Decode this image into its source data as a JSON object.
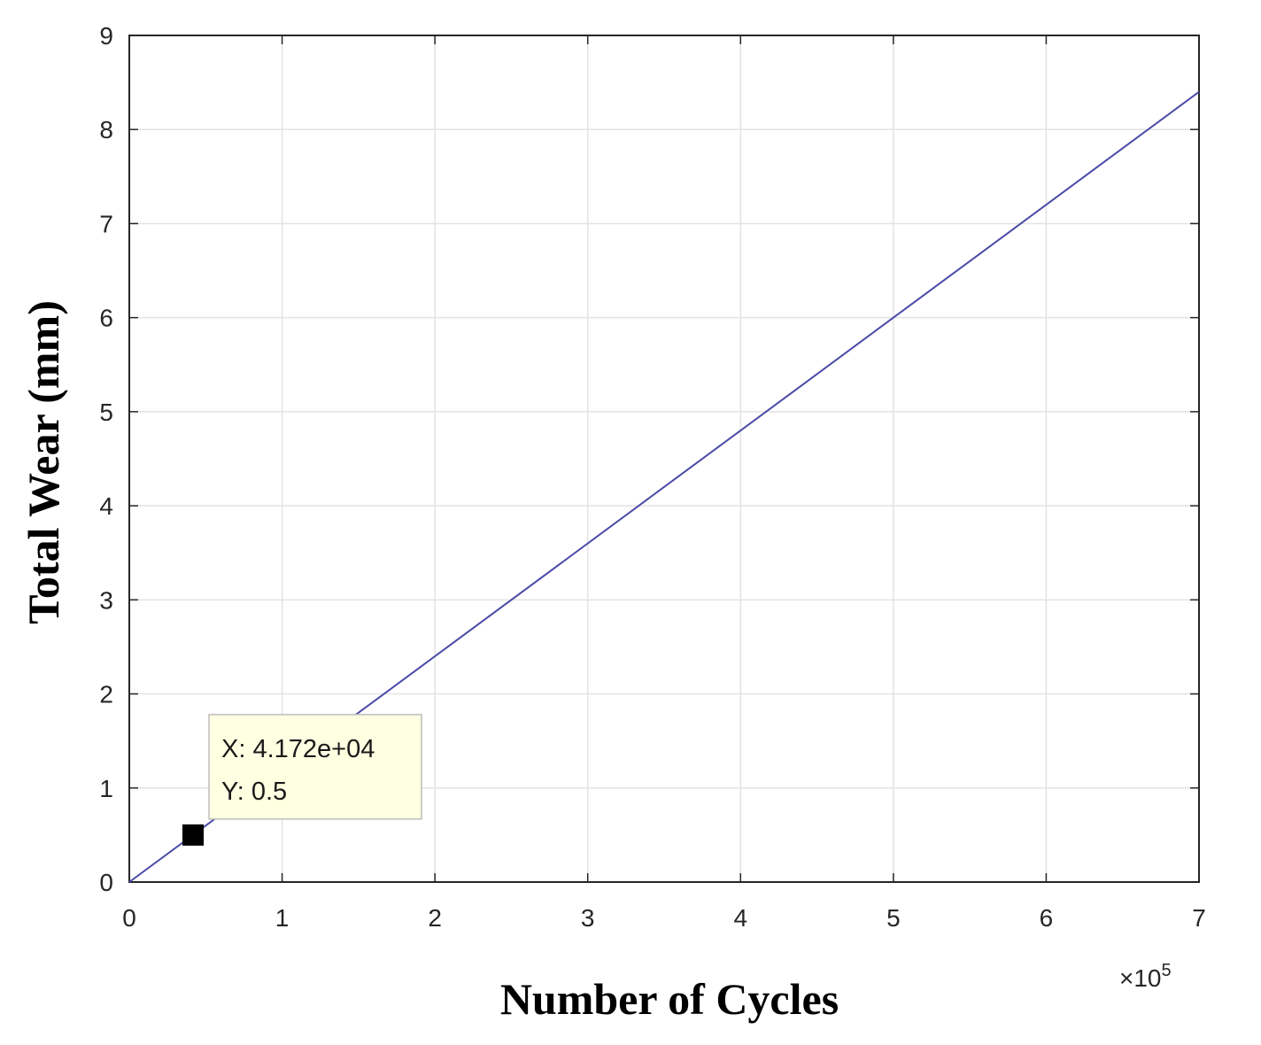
{
  "chart_data": {
    "type": "line",
    "xlabel": "Number of Cycles",
    "ylabel": "Total Wear (mm)",
    "x_exponent_label": "×10",
    "x_exponent_power": "5",
    "xlim": [
      0,
      700000
    ],
    "ylim": [
      0,
      9
    ],
    "xticks": [
      0,
      100000,
      200000,
      300000,
      400000,
      500000,
      600000,
      700000
    ],
    "xtick_labels": [
      "0",
      "1",
      "2",
      "3",
      "4",
      "5",
      "6",
      "7"
    ],
    "yticks": [
      0,
      1,
      2,
      3,
      4,
      5,
      6,
      7,
      8,
      9
    ],
    "ytick_labels": [
      "0",
      "1",
      "2",
      "3",
      "4",
      "5",
      "6",
      "7",
      "8",
      "9"
    ],
    "grid": true,
    "series": [
      {
        "x": [
          0,
          700000
        ],
        "y": [
          0,
          8.4
        ],
        "color": "#4a4aa8"
      }
    ],
    "datatip": {
      "x": 41720,
      "y": 0.5,
      "x_text": "X: 4.172e+04",
      "y_text": "Y: 0.5"
    }
  }
}
